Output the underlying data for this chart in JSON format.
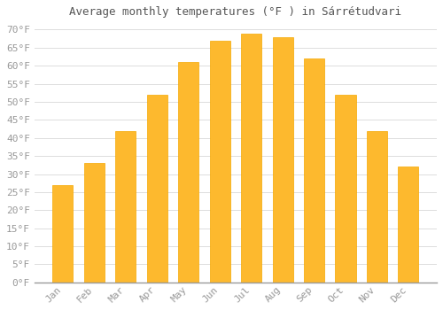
{
  "title": "Average monthly temperatures (°F ) in Sárrétudvari",
  "months": [
    "Jan",
    "Feb",
    "Mar",
    "Apr",
    "May",
    "Jun",
    "Jul",
    "Aug",
    "Sep",
    "Oct",
    "Nov",
    "Dec"
  ],
  "values": [
    27,
    33,
    42,
    52,
    61,
    67,
    69,
    68,
    62,
    52,
    42,
    32
  ],
  "bar_color": "#FDB92E",
  "bar_edge_color": "#F5A800",
  "background_color": "#ffffff",
  "grid_color": "#dddddd",
  "ylim": [
    0,
    72
  ],
  "yticks": [
    0,
    5,
    10,
    15,
    20,
    25,
    30,
    35,
    40,
    45,
    50,
    55,
    60,
    65,
    70
  ],
  "title_fontsize": 9,
  "tick_fontsize": 8,
  "tick_color": "#999999",
  "title_color": "#555555"
}
